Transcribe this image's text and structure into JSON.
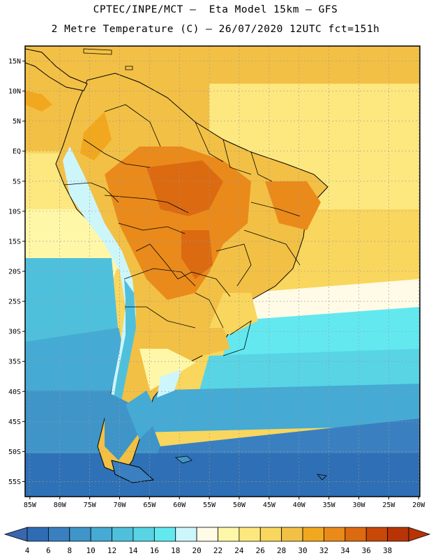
{
  "title": {
    "line1": "CPTEC/INPE/MCT –  Eta Model 15km – GFS",
    "line2": "2 Metre Temperature (C) – 26/07/2020 12UTC fct=151h"
  },
  "map": {
    "lat_labels": [
      "15N",
      "10N",
      "5N",
      "EQ",
      "5S",
      "10S",
      "15S",
      "20S",
      "25S",
      "30S",
      "35S",
      "40S",
      "45S",
      "50S",
      "55S"
    ],
    "lon_labels": [
      "85W",
      "80W",
      "75W",
      "70W",
      "65W",
      "60W",
      "55W",
      "50W",
      "45W",
      "40W",
      "35W",
      "30W",
      "25W",
      "20W"
    ]
  },
  "colorbar": {
    "ticks": [
      "4",
      "6",
      "8",
      "10",
      "12",
      "14",
      "16",
      "18",
      "20",
      "22",
      "24",
      "26",
      "28",
      "30",
      "32",
      "34",
      "36",
      "38"
    ],
    "colors": [
      "#2e6db4",
      "#3a80c0",
      "#3f95c8",
      "#45aad4",
      "#4fc0dc",
      "#58d4e4",
      "#63e8f0",
      "#cdf6fb",
      "#fffbe6",
      "#fff7a8",
      "#fde880",
      "#f9d65d",
      "#f2c045",
      "#f2a81e",
      "#ea8a1a",
      "#dc6a10",
      "#c84808",
      "#b83404"
    ]
  }
}
